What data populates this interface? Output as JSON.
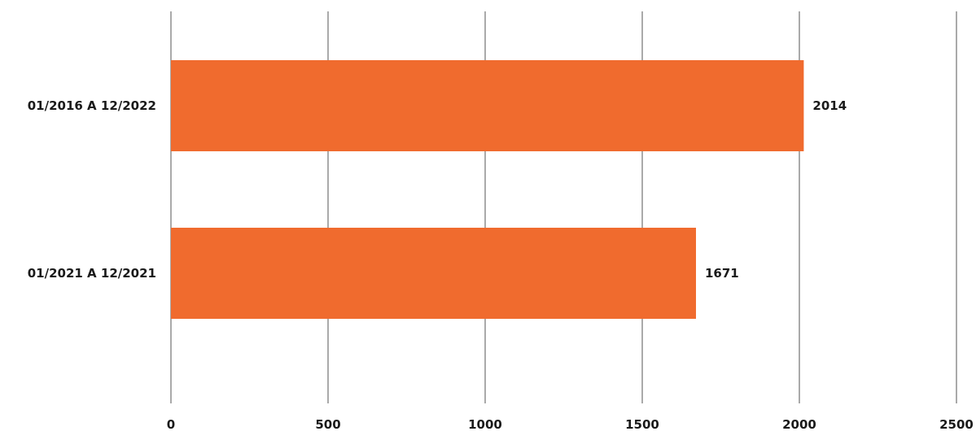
{
  "chart_data": {
    "type": "bar",
    "orientation": "horizontal",
    "categories": [
      "01/2016 A 12/2022",
      "01/2021 A 12/2021"
    ],
    "values": [
      2014,
      1671
    ],
    "data_labels": [
      "2014",
      "1671"
    ],
    "xlim": [
      0,
      2500
    ],
    "x_ticks": [
      0,
      500,
      1000,
      1500,
      2000,
      2500
    ],
    "x_tick_labels": [
      "0",
      "500",
      "1000",
      "1500",
      "2000",
      "2500"
    ],
    "title": "",
    "xlabel": "",
    "ylabel": "",
    "grid": "vertical",
    "legend": "none",
    "colors": {
      "bar": "#F06B2E",
      "grid": "#555555",
      "text": "#1a1a1a"
    }
  }
}
